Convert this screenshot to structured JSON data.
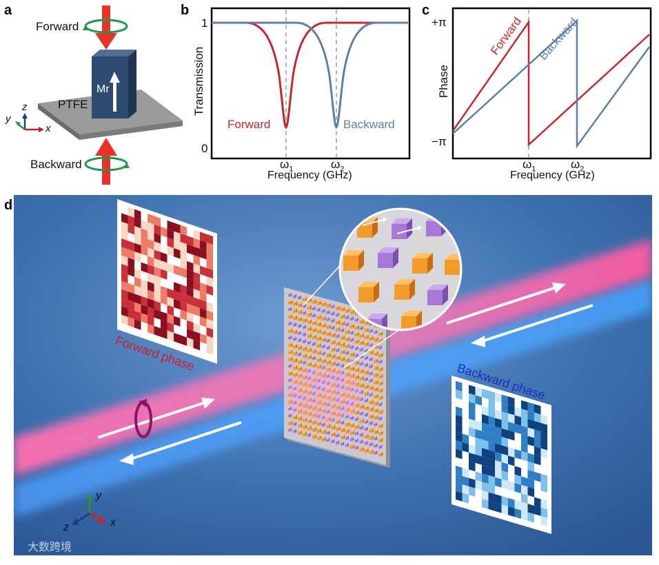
{
  "panel_a": {
    "letter": "a",
    "forward_label": "Forward",
    "backward_label": "Backward",
    "substrate_label": "PTFE",
    "magnetization_label": "Mr",
    "axis_z": "z",
    "axis_y": "y",
    "axis_x": "x",
    "colors": {
      "arrow": "#e8322a",
      "ring": "#1a9a4a",
      "pillar": "#2e4a6e",
      "substrate": "#8f8f8f"
    }
  },
  "panel_b": {
    "letter": "b",
    "ylabel": "Transmission",
    "xlabel": "Frequency (GHz)",
    "y_tick_top": "1",
    "y_tick_bottom": "0",
    "x_tick_1": "ω",
    "x_tick_1_sub": "1",
    "x_tick_2": "ω",
    "x_tick_2_sub": "2",
    "forward_label": "Forward",
    "backward_label": "Backward",
    "colors": {
      "forward": "#c8252c",
      "backward": "#5d7fa3"
    }
  },
  "panel_c": {
    "letter": "c",
    "ylabel": "Phase",
    "xlabel": "Frequency (GHz)",
    "y_tick_top": "+π",
    "y_tick_bottom": "−π",
    "x_tick_1": "ω",
    "x_tick_1_sub": "1",
    "x_tick_2": "ω",
    "x_tick_2_sub": "2",
    "forward_label": "Forward",
    "backward_label": "Backward",
    "colors": {
      "forward": "#c8252c",
      "backward": "#5d7fa3"
    }
  },
  "panel_d": {
    "letter": "d",
    "forward_phase_label": "Forward phase",
    "backward_phase_label": "Backward phase",
    "axis_y": "y",
    "axis_z": "z",
    "axis_x": "x",
    "colors": {
      "background": "#3d70b0",
      "forward_beam": "#f06aa8",
      "backward_beam": "#5aa8ff",
      "forward_palette": [
        "#ffffff",
        "#f6d7c4",
        "#ee7a68",
        "#c9303a",
        "#8a1020"
      ],
      "backward_palette": [
        "#ffffff",
        "#cfe8f6",
        "#7cc0ec",
        "#2f7fc4",
        "#10427f"
      ],
      "meta_orange": "#f29a2a",
      "meta_purple": "#a878d8"
    }
  },
  "watermark": "大数跨境"
}
